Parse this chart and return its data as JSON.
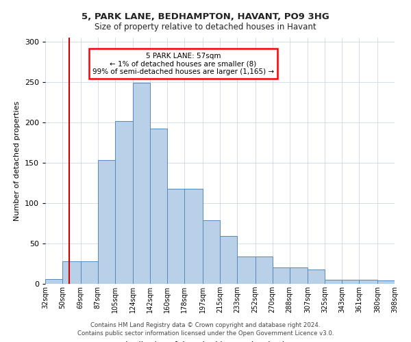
{
  "title1": "5, PARK LANE, BEDHAMPTON, HAVANT, PO9 3HG",
  "title2": "Size of property relative to detached houses in Havant",
  "xlabel": "Distribution of detached houses by size in Havant",
  "ylabel": "Number of detached properties",
  "footer1": "Contains HM Land Registry data © Crown copyright and database right 2024.",
  "footer2": "Contains public sector information licensed under the Open Government Licence v3.0.",
  "annotation_line1": "5 PARK LANE: 57sqm",
  "annotation_line2": "← 1% of detached houses are smaller (8)",
  "annotation_line3": "99% of semi-detached houses are larger (1,165) →",
  "bar_color": "#b8d0e8",
  "bar_edge_color": "#5588bb",
  "vline_color": "#cc0000",
  "vline_x": 57,
  "bin_edges": [
    32,
    50,
    69,
    87,
    105,
    124,
    142,
    160,
    178,
    197,
    215,
    233,
    252,
    270,
    288,
    307,
    325,
    343,
    361,
    380,
    398
  ],
  "bin_labels": [
    "32sqm",
    "50sqm",
    "69sqm",
    "87sqm",
    "105sqm",
    "124sqm",
    "142sqm",
    "160sqm",
    "178sqm",
    "197sqm",
    "215sqm",
    "233sqm",
    "252sqm",
    "270sqm",
    "288sqm",
    "307sqm",
    "325sqm",
    "343sqm",
    "361sqm",
    "380sqm",
    "398sqm"
  ],
  "bar_heights": [
    6,
    28,
    28,
    153,
    202,
    249,
    192,
    118,
    118,
    79,
    59,
    34,
    34,
    20,
    20,
    18,
    5,
    5,
    5,
    4
  ],
  "ylim": [
    0,
    305
  ],
  "yticks": [
    0,
    50,
    100,
    150,
    200,
    250,
    300
  ],
  "background_color": "#ffffff",
  "grid_color": "#d0d8e8"
}
